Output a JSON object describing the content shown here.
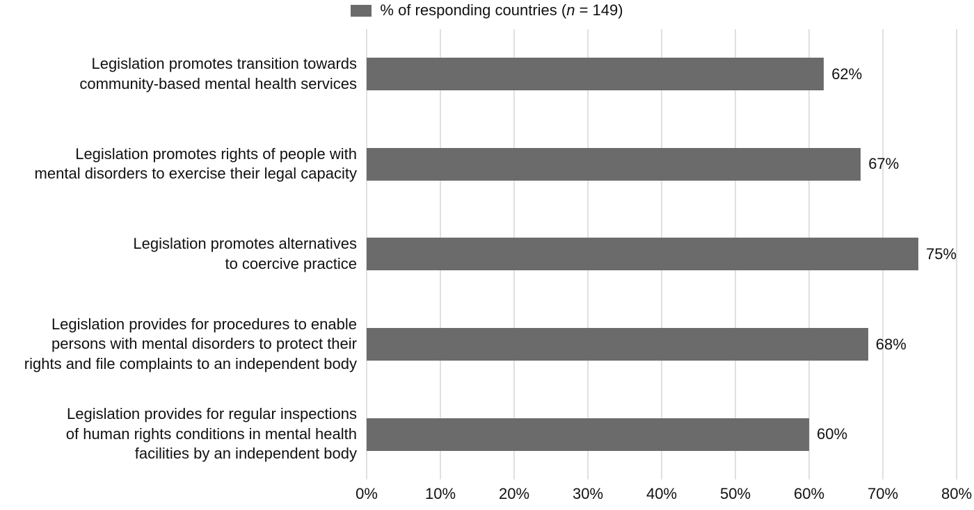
{
  "chart_data": {
    "type": "bar",
    "orientation": "horizontal",
    "title": "",
    "xlabel": "",
    "ylabel": "",
    "xlim": [
      0,
      80
    ],
    "grid": true,
    "legend_position": "top",
    "legend": {
      "prefix": "% of responding countries (",
      "n_symbol": "n",
      "suffix": " = 149)"
    },
    "categories": [
      "Legislation promotes transition towards community-based mental health services",
      "Legislation promotes rights of people with mental disorders to exercise their legal capacity",
      "Legislation promotes alternatives to coercive practice",
      "Legislation provides for procedures to enable persons with mental disorders to protect their rights and file complaints to an independent body",
      "Legislation provides for regular inspections of human rights conditions in mental health facilities by an independent body"
    ],
    "category_lines": [
      [
        "Legislation promotes transition towards",
        "community-based mental health services"
      ],
      [
        "Legislation promotes rights of people with",
        "mental disorders to exercise their legal capacity"
      ],
      [
        "Legislation promotes alternatives",
        "to coercive practice"
      ],
      [
        "Legislation provides for procedures to enable",
        "persons with mental disorders to protect their",
        "rights and file complaints to an independent body"
      ],
      [
        "Legislation provides for regular inspections",
        "of human rights conditions in mental health",
        "facilities by an independent body"
      ]
    ],
    "values": [
      62,
      67,
      75,
      68,
      60
    ],
    "value_labels": [
      "62%",
      "67%",
      "75%",
      "68%",
      "60%"
    ],
    "xticks": [
      0,
      10,
      20,
      30,
      40,
      50,
      60,
      70,
      80
    ],
    "xtick_labels": [
      "0%",
      "10%",
      "20%",
      "30%",
      "40%",
      "50%",
      "60%",
      "70%",
      "80%"
    ],
    "bar_color": "#6b6b6b",
    "gridline_color": "#c2c2c2",
    "text_color": "#111111"
  }
}
